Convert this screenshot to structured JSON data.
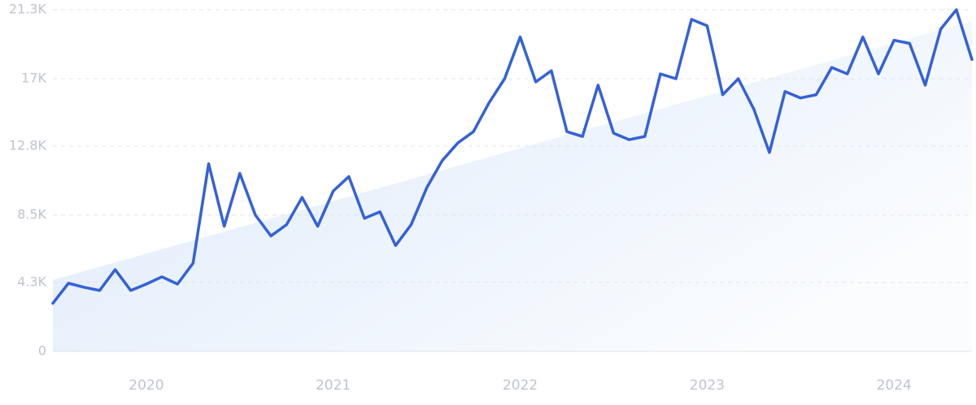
{
  "chart_data": {
    "type": "line",
    "categories": [
      null,
      null,
      null,
      null,
      null,
      null,
      "2020",
      null,
      null,
      null,
      null,
      null,
      null,
      null,
      null,
      null,
      null,
      null,
      "2021",
      null,
      null,
      null,
      null,
      null,
      null,
      null,
      null,
      null,
      null,
      null,
      "2022",
      null,
      null,
      null,
      null,
      null,
      null,
      null,
      null,
      null,
      null,
      null,
      "2023",
      null,
      null,
      null,
      null,
      null,
      null,
      null,
      null,
      null,
      null,
      null,
      "2024",
      null,
      null,
      null,
      null,
      null
    ],
    "series": [
      {
        "color": "#3461d9",
        "values": [
          3000,
          4250,
          4000,
          3800,
          5100,
          3800,
          4200,
          4650,
          4200,
          5500,
          11700,
          7800,
          11100,
          8500,
          7200,
          7900,
          9600,
          7800,
          10000,
          10900,
          8300,
          8700,
          6600,
          7900,
          10200,
          11900,
          13000,
          13700,
          15500,
          17000,
          19600,
          16800,
          17500,
          13700,
          13400,
          16600,
          13600,
          13200,
          13400,
          17300,
          17000,
          20700,
          20300,
          16000,
          17000,
          15100,
          12400,
          16200,
          15800,
          16000,
          17700,
          17300,
          19600,
          17300,
          19400,
          19200,
          16600,
          20100,
          21300,
          18200
        ]
      }
    ],
    "trend": {
      "color": "#dce9fa",
      "values": [
        4450,
        20600
      ]
    },
    "ylim": [
      0,
      21300
    ],
    "yticks": [
      0,
      {
        "value": 4300,
        "label": "4.3K"
      },
      {
        "value": 8500,
        "label": "8.5K"
      },
      {
        "value": 12800,
        "label": "12.8K"
      },
      {
        "value": 17000,
        "label": "17K"
      },
      {
        "value": 21300,
        "label": "21.3K"
      }
    ],
    "grid": true
  }
}
